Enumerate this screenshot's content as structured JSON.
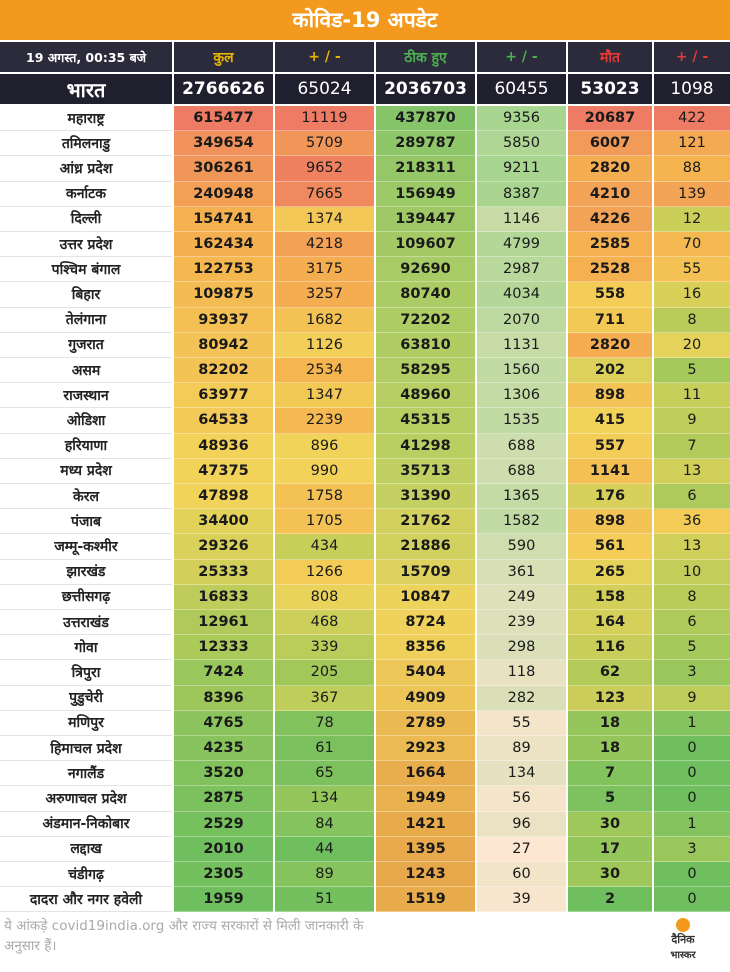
{
  "title": "कोविड-19 अपडेट",
  "header": {
    "date": "19 अगस्त, 00:35 बजे",
    "total": "कुल",
    "total_change": "+ / -",
    "recovered": "ठीक हुए",
    "recovered_change": "+ / -",
    "deaths": "मौत",
    "deaths_change": "+ / -"
  },
  "colors": {
    "title_bg": "#f39a1e",
    "header_bg": "#1f1f2e",
    "total_header": "#e9b400",
    "recovered_header": "#4caf50",
    "deaths_header": "#e53935",
    "change_header": "#2b2b3c",
    "recovered_change_bg": "#fde2cc"
  },
  "india": {
    "name": "भारत",
    "total": "2766626",
    "total_change": "65024",
    "recovered": "2036703",
    "recovered_change": "60455",
    "deaths": "53023",
    "deaths_change": "1098"
  },
  "states": [
    {
      "name": "महाराष्ट्र",
      "total": "615477",
      "total_change": "11119",
      "recovered": "437870",
      "recovered_change": "9356",
      "deaths": "20687",
      "deaths_change": "422"
    },
    {
      "name": "तमिलनाडु",
      "total": "349654",
      "total_change": "5709",
      "recovered": "289787",
      "recovered_change": "5850",
      "deaths": "6007",
      "deaths_change": "121"
    },
    {
      "name": "आंध्र प्रदेश",
      "total": "306261",
      "total_change": "9652",
      "recovered": "218311",
      "recovered_change": "9211",
      "deaths": "2820",
      "deaths_change": "88"
    },
    {
      "name": "कर्नाटक",
      "total": "240948",
      "total_change": "7665",
      "recovered": "156949",
      "recovered_change": "8387",
      "deaths": "4210",
      "deaths_change": "139"
    },
    {
      "name": "दिल्ली",
      "total": "154741",
      "total_change": "1374",
      "recovered": "139447",
      "recovered_change": "1146",
      "deaths": "4226",
      "deaths_change": "12"
    },
    {
      "name": "उत्तर प्रदेश",
      "total": "162434",
      "total_change": "4218",
      "recovered": "109607",
      "recovered_change": "4799",
      "deaths": "2585",
      "deaths_change": "70"
    },
    {
      "name": "पश्चिम बंगाल",
      "total": "122753",
      "total_change": "3175",
      "recovered": "92690",
      "recovered_change": "2987",
      "deaths": "2528",
      "deaths_change": "55"
    },
    {
      "name": "बिहार",
      "total": "109875",
      "total_change": "3257",
      "recovered": "80740",
      "recovered_change": "4034",
      "deaths": "558",
      "deaths_change": "16"
    },
    {
      "name": "तेलंगाना",
      "total": "93937",
      "total_change": "1682",
      "recovered": "72202",
      "recovered_change": "2070",
      "deaths": "711",
      "deaths_change": "8"
    },
    {
      "name": "गुजरात",
      "total": "80942",
      "total_change": "1126",
      "recovered": "63810",
      "recovered_change": "1131",
      "deaths": "2820",
      "deaths_change": "20"
    },
    {
      "name": "असम",
      "total": "82202",
      "total_change": "2534",
      "recovered": "58295",
      "recovered_change": "1560",
      "deaths": "202",
      "deaths_change": "5"
    },
    {
      "name": "राजस्थान",
      "total": "63977",
      "total_change": "1347",
      "recovered": "48960",
      "recovered_change": "1306",
      "deaths": "898",
      "deaths_change": "11"
    },
    {
      "name": "ओडिशा",
      "total": "64533",
      "total_change": "2239",
      "recovered": "45315",
      "recovered_change": "1535",
      "deaths": "415",
      "deaths_change": "9"
    },
    {
      "name": "हरियाणा",
      "total": "48936",
      "total_change": "896",
      "recovered": "41298",
      "recovered_change": "688",
      "deaths": "557",
      "deaths_change": "7"
    },
    {
      "name": "मध्य प्रदेश",
      "total": "47375",
      "total_change": "990",
      "recovered": "35713",
      "recovered_change": "688",
      "deaths": "1141",
      "deaths_change": "13"
    },
    {
      "name": "केरल",
      "total": "47898",
      "total_change": "1758",
      "recovered": "31390",
      "recovered_change": "1365",
      "deaths": "176",
      "deaths_change": "6"
    },
    {
      "name": "पंजाब",
      "total": "34400",
      "total_change": "1705",
      "recovered": "21762",
      "recovered_change": "1582",
      "deaths": "898",
      "deaths_change": "36"
    },
    {
      "name": "जम्मू-कश्मीर",
      "total": "29326",
      "total_change": "434",
      "recovered": "21886",
      "recovered_change": "590",
      "deaths": "561",
      "deaths_change": "13"
    },
    {
      "name": "झारखंड",
      "total": "25333",
      "total_change": "1266",
      "recovered": "15709",
      "recovered_change": "361",
      "deaths": "265",
      "deaths_change": "10"
    },
    {
      "name": "छत्तीसगढ़",
      "total": "16833",
      "total_change": "808",
      "recovered": "10847",
      "recovered_change": "249",
      "deaths": "158",
      "deaths_change": "8"
    },
    {
      "name": "उत्तराखंड",
      "total": "12961",
      "total_change": "468",
      "recovered": "8724",
      "recovered_change": "239",
      "deaths": "164",
      "deaths_change": "6"
    },
    {
      "name": "गोवा",
      "total": "12333",
      "total_change": "339",
      "recovered": "8356",
      "recovered_change": "298",
      "deaths": "116",
      "deaths_change": "5"
    },
    {
      "name": "त्रिपुरा",
      "total": "7424",
      "total_change": "205",
      "recovered": "5404",
      "recovered_change": "118",
      "deaths": "62",
      "deaths_change": "3"
    },
    {
      "name": "पुडुचेरी",
      "total": "8396",
      "total_change": "367",
      "recovered": "4909",
      "recovered_change": "282",
      "deaths": "123",
      "deaths_change": "9"
    },
    {
      "name": "मणिपुर",
      "total": "4765",
      "total_change": "78",
      "recovered": "2789",
      "recovered_change": "55",
      "deaths": "18",
      "deaths_change": "1"
    },
    {
      "name": "हिमाचल प्रदेश",
      "total": "4235",
      "total_change": "61",
      "recovered": "2923",
      "recovered_change": "89",
      "deaths": "18",
      "deaths_change": "0"
    },
    {
      "name": "नगालैंड",
      "total": "3520",
      "total_change": "65",
      "recovered": "1664",
      "recovered_change": "134",
      "deaths": "7",
      "deaths_change": "0"
    },
    {
      "name": "अरुणाचल प्रदेश",
      "total": "2875",
      "total_change": "134",
      "recovered": "1949",
      "recovered_change": "56",
      "deaths": "5",
      "deaths_change": "0"
    },
    {
      "name": "अंडमान-निकोबार",
      "total": "2529",
      "total_change": "84",
      "recovered": "1421",
      "recovered_change": "96",
      "deaths": "30",
      "deaths_change": "1"
    },
    {
      "name": "लद्दाख",
      "total": "2010",
      "total_change": "44",
      "recovered": "1395",
      "recovered_change": "27",
      "deaths": "17",
      "deaths_change": "3"
    },
    {
      "name": "चंडीगढ़",
      "total": "2305",
      "total_change": "89",
      "recovered": "1243",
      "recovered_change": "60",
      "deaths": "30",
      "deaths_change": "0"
    },
    {
      "name": "दादरा और नगर हवेली",
      "total": "1959",
      "total_change": "51",
      "recovered": "1519",
      "recovered_change": "39",
      "deaths": "2",
      "deaths_change": "0"
    }
  ],
  "footer": "ये आंकड़े covid19india.org और राज्य सरकारों से मिली जानकारी के अनुसार हैं।",
  "logo": {
    "line1": "दैनिक",
    "line2": "भास्कर"
  }
}
